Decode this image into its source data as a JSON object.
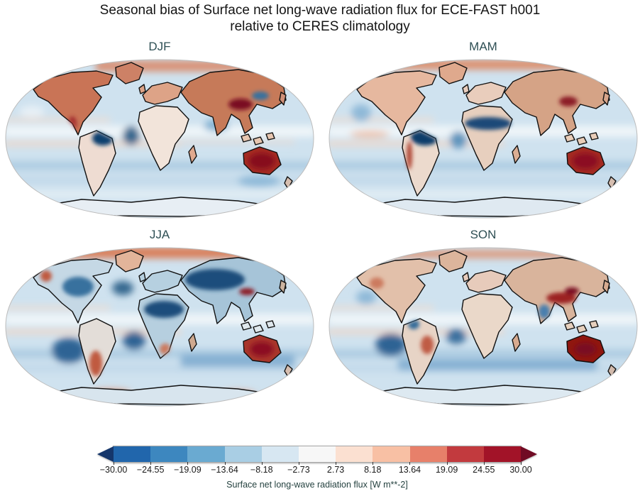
{
  "figure": {
    "title_line1": "Seasonal bias of Surface net long-wave radiation flux for ECE-FAST h001",
    "title_line2": "relative to CERES climatology"
  },
  "panels": [
    {
      "label": "DJF",
      "visual_summary": "Reddish bias over winter NH continents, dark red over Tibet and Australia, dark blue over Amazon and Gulf of Guinea, light blue oceans"
    },
    {
      "label": "MAM",
      "visual_summary": "Red Arctic band, dark blue Amazon and Sahel band, red Australia and Tibet, light blue oceans"
    },
    {
      "label": "JJA",
      "visual_summary": "Strong red Arctic band, dark blue Eurasia and North Africa, dark blue oceans west of South America and Africa, red southern South America and Australia"
    },
    {
      "label": "SON",
      "visual_summary": "Red Arctic coasts, dark red Middle East/Tibet and Australia, dark blue eastern Pacific and South Atlantic, light blue oceans"
    }
  ],
  "panel_label_color": "#2e4f54",
  "colorbar": {
    "label": "Surface net long-wave radiation flux [W m**-2]",
    "ticks": [
      "−30.00",
      "−24.55",
      "−19.09",
      "−13.64",
      "−8.18",
      "−2.73",
      "2.73",
      "8.18",
      "13.64",
      "19.09",
      "24.55",
      "30.00"
    ],
    "segment_colors": [
      "#2166ac",
      "#3d87bf",
      "#6aaad1",
      "#a9cee4",
      "#d7e7f2",
      "#f7f7f7",
      "#fbe0d1",
      "#f8c0a4",
      "#e7806a",
      "#c23a3e",
      "#a21328"
    ],
    "arrow_left_color": "#15366b",
    "arrow_right_color": "#700b24"
  },
  "chart_data": {
    "type": "heatmap",
    "title": "Seasonal bias of Surface net long-wave radiation flux for ECE-FAST h001 relative to CERES climatology",
    "panels": [
      "DJF",
      "MAM",
      "JJA",
      "SON"
    ],
    "projection": "Robinson world map, coastlines drawn in black",
    "colorbar_label": "Surface net long-wave radiation flux [W m**-2]",
    "levels": [
      -30.0,
      -24.55,
      -19.09,
      -13.64,
      -8.18,
      -2.73,
      2.73,
      8.18,
      13.64,
      19.09,
      24.55,
      30.0
    ],
    "value_range": [
      -30,
      30
    ],
    "extend": "both",
    "colormap": "RdBu_r, 11 discrete bins plus under/over arrow triangles",
    "legend_position": "horizontal colorbar centered below the four panels"
  }
}
